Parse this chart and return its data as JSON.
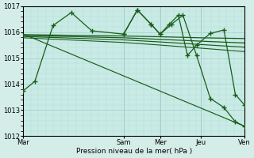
{
  "bg_color": "#d4ede8",
  "plot_bg": "#c8ebe5",
  "grid_major_color": "#a8d4ce",
  "grid_minor_color": "#b8ddd8",
  "line_color": "#1a5c1a",
  "ylim": [
    1012,
    1017
  ],
  "yticks": [
    1012,
    1013,
    1014,
    1015,
    1016,
    1017
  ],
  "xlabel": "Pression niveau de la mer( hPa )",
  "day_labels": [
    "Mar",
    "Sam",
    "Mer",
    "Jeu",
    "Ven"
  ],
  "day_x": [
    0,
    44,
    60,
    78,
    97
  ],
  "vline_color": "#556655",
  "series": [
    {
      "x": [
        0,
        5,
        13,
        21,
        30,
        44,
        50,
        56,
        60,
        64,
        68,
        72,
        76,
        82,
        88,
        93,
        97
      ],
      "y": [
        1013.75,
        1014.1,
        1016.25,
        1016.75,
        1016.05,
        1015.92,
        1016.85,
        1016.3,
        1015.92,
        1016.3,
        1016.65,
        1015.1,
        1015.5,
        1015.95,
        1016.08,
        1013.6,
        1013.2
      ],
      "ls": "-",
      "lw": 0.9,
      "marker": "+",
      "ms": 4,
      "mew": 1.0
    },
    {
      "x": [
        44,
        50,
        56,
        60,
        65,
        70,
        76,
        82,
        88,
        93,
        97
      ],
      "y": [
        1015.92,
        1016.85,
        1016.3,
        1015.92,
        1016.3,
        1016.65,
        1015.1,
        1013.45,
        1013.1,
        1012.55,
        1012.38
      ],
      "ls": "-",
      "lw": 0.9,
      "marker": "+",
      "ms": 4,
      "mew": 1.0
    },
    {
      "x": [
        0,
        44,
        60,
        78,
        97
      ],
      "y": [
        1015.9,
        1015.85,
        1015.82,
        1015.78,
        1015.75
      ],
      "ls": "-",
      "lw": 0.9,
      "marker": null,
      "ms": 0,
      "mew": 0
    },
    {
      "x": [
        0,
        44,
        60,
        78,
        97
      ],
      "y": [
        1015.87,
        1015.78,
        1015.72,
        1015.65,
        1015.58
      ],
      "ls": "-",
      "lw": 0.9,
      "marker": null,
      "ms": 0,
      "mew": 0
    },
    {
      "x": [
        0,
        44,
        60,
        78,
        97
      ],
      "y": [
        1015.83,
        1015.7,
        1015.62,
        1015.52,
        1015.42
      ],
      "ls": "-",
      "lw": 0.85,
      "marker": null,
      "ms": 0,
      "mew": 0
    },
    {
      "x": [
        0,
        44,
        60,
        78,
        97
      ],
      "y": [
        1015.78,
        1015.6,
        1015.5,
        1015.38,
        1015.25
      ],
      "ls": "-",
      "lw": 0.8,
      "marker": null,
      "ms": 0,
      "mew": 0
    },
    {
      "x": [
        0,
        97
      ],
      "y": [
        1015.92,
        1012.38
      ],
      "ls": "-",
      "lw": 0.85,
      "marker": null,
      "ms": 0,
      "mew": 0
    }
  ]
}
